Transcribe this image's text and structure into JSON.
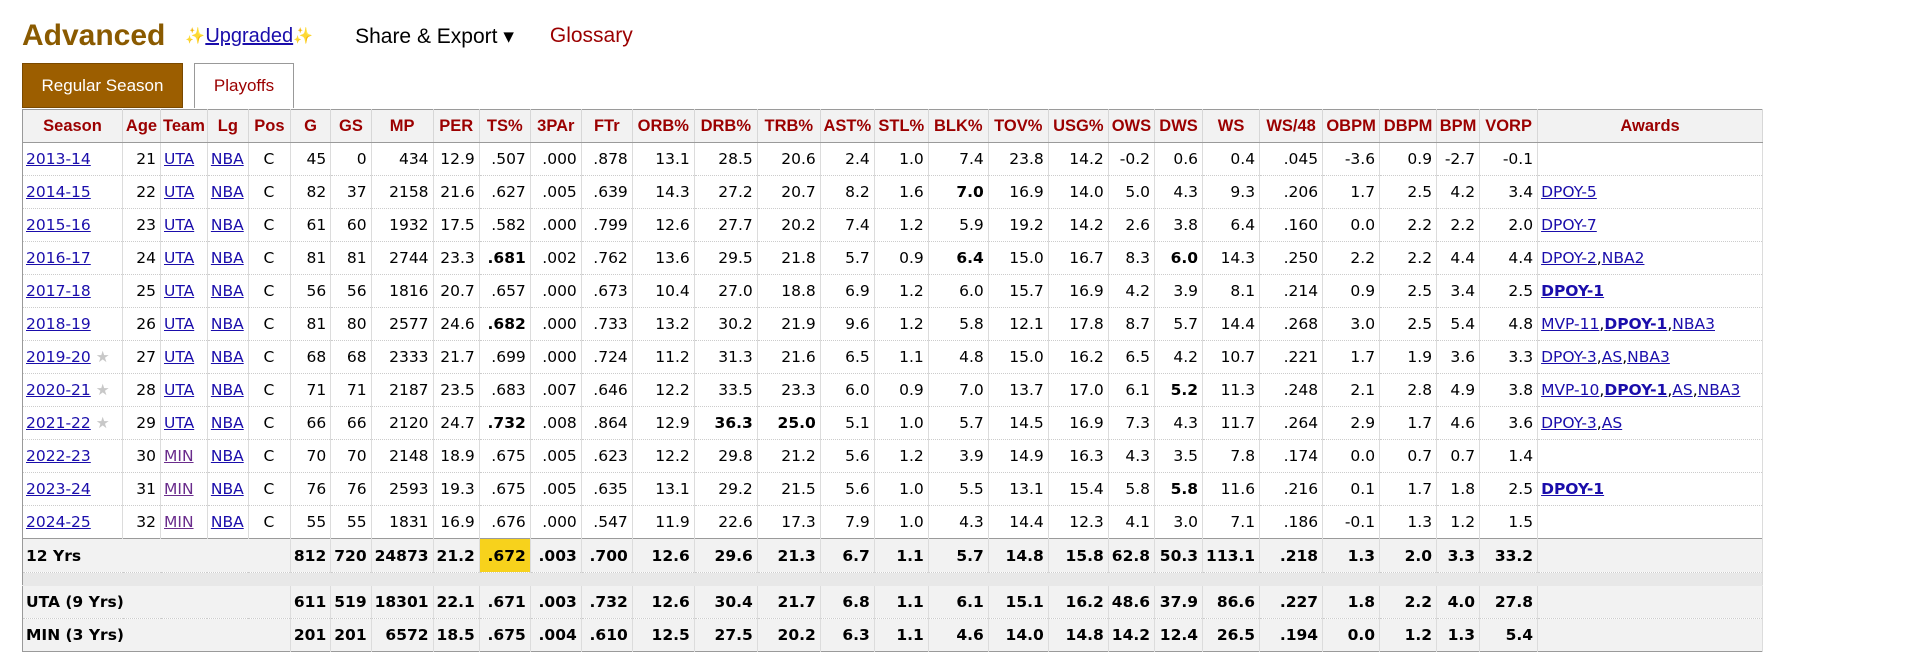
{
  "header": {
    "title": "Advanced",
    "upgraded_sparkle_left": "✨",
    "upgraded_label": "Upgraded",
    "upgraded_sparkle_right": "✨",
    "share_label": "Share & Export ▾",
    "glossary_label": "Glossary"
  },
  "tabs": [
    {
      "label": "Regular Season",
      "active": true
    },
    {
      "label": "Playoffs",
      "active": false
    }
  ],
  "columns": [
    "Season",
    "Age",
    "Team",
    "Lg",
    "Pos",
    "G",
    "GS",
    "MP",
    "PER",
    "TS%",
    "3PAr",
    "FTr",
    "ORB%",
    "DRB%",
    "TRB%",
    "AST%",
    "STL%",
    "BLK%",
    "TOV%",
    "USG%",
    "OWS",
    "DWS",
    "WS",
    "WS/48",
    "OBPM",
    "DBPM",
    "BPM",
    "VORP",
    "Awards"
  ],
  "rows": [
    {
      "season": "2013-14",
      "star": false,
      "age": "21",
      "team": "UTA",
      "lg": "NBA",
      "pos": "C",
      "g": "45",
      "gs": "0",
      "mp": "434",
      "per": "12.9",
      "ts": ".507",
      "par3": ".000",
      "ftr": ".878",
      "orb": "13.1",
      "drb": "28.5",
      "trb": "20.6",
      "ast": "2.4",
      "stl": "1.0",
      "blk": "7.4",
      "tov": "23.8",
      "usg": "14.2",
      "ows": "-0.2",
      "dws": "0.6",
      "ws": "0.4",
      "ws48": ".045",
      "obpm": "-3.6",
      "dbpm": "0.9",
      "bpm": "-2.7",
      "vorp": "-0.1",
      "bold": [],
      "awards": []
    },
    {
      "season": "2014-15",
      "star": false,
      "age": "22",
      "team": "UTA",
      "lg": "NBA",
      "pos": "C",
      "g": "82",
      "gs": "37",
      "mp": "2158",
      "per": "21.6",
      "ts": ".627",
      "par3": ".005",
      "ftr": ".639",
      "orb": "14.3",
      "drb": "27.2",
      "trb": "20.7",
      "ast": "8.2",
      "stl": "1.6",
      "blk": "7.0",
      "tov": "16.9",
      "usg": "14.0",
      "ows": "5.0",
      "dws": "4.3",
      "ws": "9.3",
      "ws48": ".206",
      "obpm": "1.7",
      "dbpm": "2.5",
      "bpm": "4.2",
      "vorp": "3.4",
      "bold": [
        "blk"
      ],
      "awards": [
        {
          "text": "DPOY-5",
          "bold": false
        }
      ]
    },
    {
      "season": "2015-16",
      "star": false,
      "age": "23",
      "team": "UTA",
      "lg": "NBA",
      "pos": "C",
      "g": "61",
      "gs": "60",
      "mp": "1932",
      "per": "17.5",
      "ts": ".582",
      "par3": ".000",
      "ftr": ".799",
      "orb": "12.6",
      "drb": "27.7",
      "trb": "20.2",
      "ast": "7.4",
      "stl": "1.2",
      "blk": "5.9",
      "tov": "19.2",
      "usg": "14.2",
      "ows": "2.6",
      "dws": "3.8",
      "ws": "6.4",
      "ws48": ".160",
      "obpm": "0.0",
      "dbpm": "2.2",
      "bpm": "2.2",
      "vorp": "2.0",
      "bold": [],
      "awards": [
        {
          "text": "DPOY-7",
          "bold": false
        }
      ]
    },
    {
      "season": "2016-17",
      "star": false,
      "age": "24",
      "team": "UTA",
      "lg": "NBA",
      "pos": "C",
      "g": "81",
      "gs": "81",
      "mp": "2744",
      "per": "23.3",
      "ts": ".681",
      "par3": ".002",
      "ftr": ".762",
      "orb": "13.6",
      "drb": "29.5",
      "trb": "21.8",
      "ast": "5.7",
      "stl": "0.9",
      "blk": "6.4",
      "tov": "15.0",
      "usg": "16.7",
      "ows": "8.3",
      "dws": "6.0",
      "ws": "14.3",
      "ws48": ".250",
      "obpm": "2.2",
      "dbpm": "2.2",
      "bpm": "4.4",
      "vorp": "4.4",
      "bold": [
        "ts",
        "blk",
        "dws"
      ],
      "awards": [
        {
          "text": "DPOY-2",
          "bold": false
        },
        {
          "text": "NBA2",
          "bold": false
        }
      ]
    },
    {
      "season": "2017-18",
      "star": false,
      "age": "25",
      "team": "UTA",
      "lg": "NBA",
      "pos": "C",
      "g": "56",
      "gs": "56",
      "mp": "1816",
      "per": "20.7",
      "ts": ".657",
      "par3": ".000",
      "ftr": ".673",
      "orb": "10.4",
      "drb": "27.0",
      "trb": "18.8",
      "ast": "6.9",
      "stl": "1.2",
      "blk": "6.0",
      "tov": "15.7",
      "usg": "16.9",
      "ows": "4.2",
      "dws": "3.9",
      "ws": "8.1",
      "ws48": ".214",
      "obpm": "0.9",
      "dbpm": "2.5",
      "bpm": "3.4",
      "vorp": "2.5",
      "bold": [],
      "awards": [
        {
          "text": "DPOY-1",
          "bold": true
        }
      ]
    },
    {
      "season": "2018-19",
      "star": false,
      "age": "26",
      "team": "UTA",
      "lg": "NBA",
      "pos": "C",
      "g": "81",
      "gs": "80",
      "mp": "2577",
      "per": "24.6",
      "ts": ".682",
      "par3": ".000",
      "ftr": ".733",
      "orb": "13.2",
      "drb": "30.2",
      "trb": "21.9",
      "ast": "9.6",
      "stl": "1.2",
      "blk": "5.8",
      "tov": "12.1",
      "usg": "17.8",
      "ows": "8.7",
      "dws": "5.7",
      "ws": "14.4",
      "ws48": ".268",
      "obpm": "3.0",
      "dbpm": "2.5",
      "bpm": "5.4",
      "vorp": "4.8",
      "bold": [
        "ts"
      ],
      "awards": [
        {
          "text": "MVP-11",
          "bold": false
        },
        {
          "text": "DPOY-1",
          "bold": true
        },
        {
          "text": "NBA3",
          "bold": false
        }
      ]
    },
    {
      "season": "2019-20",
      "star": true,
      "age": "27",
      "team": "UTA",
      "lg": "NBA",
      "pos": "C",
      "g": "68",
      "gs": "68",
      "mp": "2333",
      "per": "21.7",
      "ts": ".699",
      "par3": ".000",
      "ftr": ".724",
      "orb": "11.2",
      "drb": "31.3",
      "trb": "21.6",
      "ast": "6.5",
      "stl": "1.1",
      "blk": "4.8",
      "tov": "15.0",
      "usg": "16.2",
      "ows": "6.5",
      "dws": "4.2",
      "ws": "10.7",
      "ws48": ".221",
      "obpm": "1.7",
      "dbpm": "1.9",
      "bpm": "3.6",
      "vorp": "3.3",
      "bold": [],
      "awards": [
        {
          "text": "DPOY-3",
          "bold": false
        },
        {
          "text": "AS",
          "bold": false
        },
        {
          "text": "NBA3",
          "bold": false
        }
      ]
    },
    {
      "season": "2020-21",
      "star": true,
      "age": "28",
      "team": "UTA",
      "lg": "NBA",
      "pos": "C",
      "g": "71",
      "gs": "71",
      "mp": "2187",
      "per": "23.5",
      "ts": ".683",
      "par3": ".007",
      "ftr": ".646",
      "orb": "12.2",
      "drb": "33.5",
      "trb": "23.3",
      "ast": "6.0",
      "stl": "0.9",
      "blk": "7.0",
      "tov": "13.7",
      "usg": "17.0",
      "ows": "6.1",
      "dws": "5.2",
      "ws": "11.3",
      "ws48": ".248",
      "obpm": "2.1",
      "dbpm": "2.8",
      "bpm": "4.9",
      "vorp": "3.8",
      "bold": [
        "dws"
      ],
      "awards": [
        {
          "text": "MVP-10",
          "bold": false
        },
        {
          "text": "DPOY-1",
          "bold": true
        },
        {
          "text": "AS",
          "bold": false
        },
        {
          "text": "NBA3",
          "bold": false
        }
      ]
    },
    {
      "season": "2021-22",
      "star": true,
      "age": "29",
      "team": "UTA",
      "lg": "NBA",
      "pos": "C",
      "g": "66",
      "gs": "66",
      "mp": "2120",
      "per": "24.7",
      "ts": ".732",
      "par3": ".008",
      "ftr": ".864",
      "orb": "12.9",
      "drb": "36.3",
      "trb": "25.0",
      "ast": "5.1",
      "stl": "1.0",
      "blk": "5.7",
      "tov": "14.5",
      "usg": "16.9",
      "ows": "7.3",
      "dws": "4.3",
      "ws": "11.7",
      "ws48": ".264",
      "obpm": "2.9",
      "dbpm": "1.7",
      "bpm": "4.6",
      "vorp": "3.6",
      "bold": [
        "ts",
        "drb",
        "trb"
      ],
      "awards": [
        {
          "text": "DPOY-3",
          "bold": false
        },
        {
          "text": "AS",
          "bold": false
        }
      ]
    },
    {
      "season": "2022-23",
      "star": false,
      "age": "30",
      "team": "MIN",
      "lg": "NBA",
      "pos": "C",
      "g": "70",
      "gs": "70",
      "mp": "2148",
      "per": "18.9",
      "ts": ".675",
      "par3": ".005",
      "ftr": ".623",
      "orb": "12.2",
      "drb": "29.8",
      "trb": "21.2",
      "ast": "5.6",
      "stl": "1.2",
      "blk": "3.9",
      "tov": "14.9",
      "usg": "16.3",
      "ows": "4.3",
      "dws": "3.5",
      "ws": "7.8",
      "ws48": ".174",
      "obpm": "0.0",
      "dbpm": "0.7",
      "bpm": "0.7",
      "vorp": "1.4",
      "bold": [],
      "awards": []
    },
    {
      "season": "2023-24",
      "star": false,
      "age": "31",
      "team": "MIN",
      "lg": "NBA",
      "pos": "C",
      "g": "76",
      "gs": "76",
      "mp": "2593",
      "per": "19.3",
      "ts": ".675",
      "par3": ".005",
      "ftr": ".635",
      "orb": "13.1",
      "drb": "29.2",
      "trb": "21.5",
      "ast": "5.6",
      "stl": "1.0",
      "blk": "5.5",
      "tov": "13.1",
      "usg": "15.4",
      "ows": "5.8",
      "dws": "5.8",
      "ws": "11.6",
      "ws48": ".216",
      "obpm": "0.1",
      "dbpm": "1.7",
      "bpm": "1.8",
      "vorp": "2.5",
      "bold": [
        "dws"
      ],
      "awards": [
        {
          "text": "DPOY-1",
          "bold": true
        }
      ]
    },
    {
      "season": "2024-25",
      "star": false,
      "age": "32",
      "team": "MIN",
      "lg": "NBA",
      "pos": "C",
      "g": "55",
      "gs": "55",
      "mp": "1831",
      "per": "16.9",
      "ts": ".676",
      "par3": ".000",
      "ftr": ".547",
      "orb": "11.9",
      "drb": "22.6",
      "trb": "17.3",
      "ast": "7.9",
      "stl": "1.0",
      "blk": "4.3",
      "tov": "14.4",
      "usg": "12.3",
      "ows": "4.1",
      "dws": "3.0",
      "ws": "7.1",
      "ws48": ".186",
      "obpm": "-0.1",
      "dbpm": "1.3",
      "bpm": "1.2",
      "vorp": "1.5",
      "bold": [],
      "awards": []
    }
  ],
  "career": {
    "label": "12 Yrs",
    "g": "812",
    "gs": "720",
    "mp": "24873",
    "per": "21.2",
    "ts": ".672",
    "par3": ".003",
    "ftr": ".700",
    "orb": "12.6",
    "drb": "29.6",
    "trb": "21.3",
    "ast": "6.7",
    "stl": "1.1",
    "blk": "5.7",
    "tov": "14.8",
    "usg": "15.8",
    "ows": "62.8",
    "dws": "50.3",
    "ws": "113.1",
    "ws48": ".218",
    "obpm": "1.3",
    "dbpm": "2.0",
    "bpm": "3.3",
    "vorp": "33.2",
    "highlight": "ts"
  },
  "team_totals": [
    {
      "label": "UTA (9 Yrs)",
      "g": "611",
      "gs": "519",
      "mp": "18301",
      "per": "22.1",
      "ts": ".671",
      "par3": ".003",
      "ftr": ".732",
      "orb": "12.6",
      "drb": "30.4",
      "trb": "21.7",
      "ast": "6.8",
      "stl": "1.1",
      "blk": "6.1",
      "tov": "15.1",
      "usg": "16.2",
      "ows": "48.6",
      "dws": "37.9",
      "ws": "86.6",
      "ws48": ".227",
      "obpm": "1.8",
      "dbpm": "2.2",
      "bpm": "4.0",
      "vorp": "27.8"
    },
    {
      "label": "MIN (3 Yrs)",
      "g": "201",
      "gs": "201",
      "mp": "6572",
      "per": "18.5",
      "ts": ".675",
      "par3": ".004",
      "ftr": ".610",
      "orb": "12.5",
      "drb": "27.5",
      "trb": "20.2",
      "ast": "6.3",
      "stl": "1.1",
      "blk": "4.6",
      "tov": "14.0",
      "usg": "14.8",
      "ows": "14.2",
      "dws": "12.4",
      "ws": "26.5",
      "ws48": ".194",
      "obpm": "0.0",
      "dbpm": "1.2",
      "bpm": "1.3",
      "vorp": "5.4"
    }
  ],
  "colors": {
    "title": "#8a5a00",
    "header_text": "#9b0000",
    "link": "#1a0dab",
    "min_link": "#6a2c8c",
    "active_tab": "#9c5e00",
    "highlight": "#f7d21c"
  },
  "star_glyph": "★"
}
